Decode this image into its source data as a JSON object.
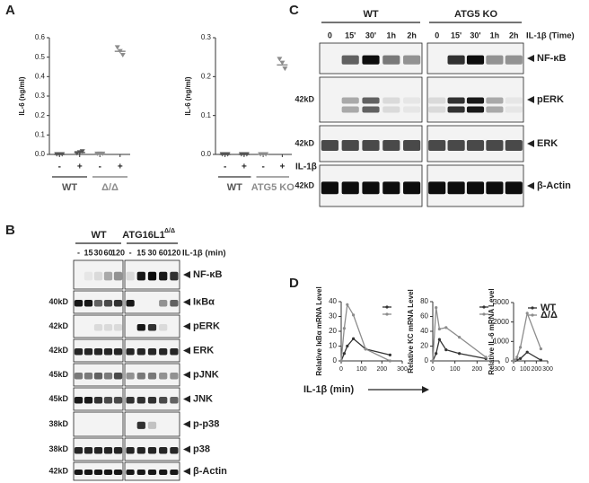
{
  "panel_labels": [
    "A",
    "B",
    "C",
    "D"
  ],
  "chart_data": [
    {
      "type": "dot",
      "ylabel": "IL-6 (ng/ml)",
      "ylim": [
        0,
        0.6
      ],
      "yticks": [
        {
          "value": 0,
          "label": "0.0"
        },
        0.1,
        0.2,
        0.3,
        0.4,
        0.5,
        0.6
      ],
      "categories": [
        "-",
        "+"
      ],
      "series": [
        {
          "name": "WT",
          "color": "#555555",
          "values": [
            0,
            0.01
          ],
          "points": [
            [
              0,
              0,
              0
            ],
            [
              0.005,
              0.01,
              0.015
            ]
          ]
        },
        {
          "name": "Δ/Δ",
          "color": "#8c8c8c",
          "values": [
            0.003,
            0.53
          ],
          "points": [
            [
              0.003,
              0.003,
              0.003
            ],
            [
              0.55,
              0.53,
              0.51
            ]
          ]
        }
      ]
    },
    {
      "type": "dot",
      "ylabel": "IL-6 (ng/ml)",
      "ylim": [
        0,
        0.3
      ],
      "yticks": [
        {
          "value": 0,
          "label": "0.0"
        },
        0.1,
        0.2,
        0.3
      ],
      "categories": [
        "-",
        "+"
      ],
      "treatment_label": "IL-1β",
      "series": [
        {
          "name": "WT",
          "color": "#555555",
          "values": [
            0,
            0
          ],
          "points": [
            [
              0,
              0,
              0
            ],
            [
              0,
              0,
              0
            ]
          ]
        },
        {
          "name": "ATG5 KO",
          "color": "#8c8c8c",
          "values": [
            0,
            0.23
          ],
          "points": [
            [
              0,
              0,
              0
            ],
            [
              0.245,
              0.235,
              0.22
            ]
          ]
        }
      ]
    },
    {
      "type": "line",
      "ylabel": "Relative IκBα mRNA Level",
      "xlim": [
        0,
        300
      ],
      "xticks": [
        0,
        100,
        200,
        300
      ],
      "ylim": [
        0,
        40
      ],
      "yticks": [
        0,
        10,
        20,
        30,
        40
      ],
      "x": [
        0,
        15,
        30,
        60,
        120,
        240
      ],
      "series": [
        {
          "color": "#333333",
          "values": [
            0,
            5,
            10,
            15,
            8,
            4
          ]
        },
        {
          "color": "#8c8c8c",
          "values": [
            0,
            22,
            38,
            31,
            8,
            0
          ]
        }
      ]
    },
    {
      "type": "line",
      "ylabel": "Relative KC mRNA Level",
      "xlim": [
        0,
        300
      ],
      "xticks": [
        0,
        100,
        200,
        300
      ],
      "ylim": [
        0,
        80
      ],
      "yticks": [
        0,
        20,
        40,
        60,
        80
      ],
      "x": [
        0,
        15,
        30,
        60,
        120,
        240
      ],
      "series": [
        {
          "color": "#333333",
          "values": [
            0,
            10,
            29,
            15,
            10,
            3
          ]
        },
        {
          "color": "#8c8c8c",
          "values": [
            0,
            72,
            43,
            45,
            32,
            5
          ]
        }
      ]
    },
    {
      "type": "line",
      "ylabel": "Relative IL-6 mRNA Level",
      "xlim": [
        0,
        300
      ],
      "xticks": [
        0,
        100,
        200,
        300
      ],
      "ylim": [
        0,
        3000
      ],
      "yticks": [
        0,
        1000,
        2000,
        3000
      ],
      "x": [
        0,
        15,
        30,
        60,
        120,
        240
      ],
      "legend": "upper right",
      "series": [
        {
          "name": "WT",
          "color": "#333333",
          "values": [
            0,
            20,
            50,
            120,
            450,
            40
          ]
        },
        {
          "name": "Δ/Δ",
          "color": "#8c8c8c",
          "values": [
            0,
            50,
            200,
            700,
            2450,
            620
          ]
        }
      ]
    }
  ],
  "panel_d_xlabel": "IL-1β (min)",
  "blot_b": {
    "groups": [
      "WT",
      "ATG16L1"
    ],
    "group_superscript": "Δ/Δ",
    "lanes": [
      "-",
      "15",
      "30",
      "60",
      "120",
      "-",
      "15",
      "30",
      "60",
      "120"
    ],
    "treatment": "IL-1β (min)",
    "rows": [
      {
        "label": "NF-κB",
        "mw": null
      },
      {
        "label": "IκBα",
        "mw": "40kD"
      },
      {
        "label": "pERK",
        "mw": "42kD"
      },
      {
        "label": "ERK",
        "mw": "42kD"
      },
      {
        "label": "pJNK",
        "mw": "45kD"
      },
      {
        "label": "JNK",
        "mw": "45kD"
      },
      {
        "label": "p-p38",
        "mw": "38kD"
      },
      {
        "label": "p38",
        "mw": "38kD"
      },
      {
        "label": "β-Actin",
        "mw": "42kD"
      }
    ]
  },
  "blot_c": {
    "groups": [
      "WT",
      "ATG5 KO"
    ],
    "lanes": [
      "0",
      "15'",
      "30'",
      "1h",
      "2h",
      "0",
      "15'",
      "30'",
      "1h",
      "2h"
    ],
    "treatment": "IL-1β (Time)",
    "rows": [
      {
        "label": "NF-κB",
        "mw": null
      },
      {
        "label": "pERK",
        "mw": "42kD"
      },
      {
        "label": "ERK",
        "mw": "42kD"
      },
      {
        "label": "β-Actin",
        "mw": "42kD"
      }
    ]
  }
}
